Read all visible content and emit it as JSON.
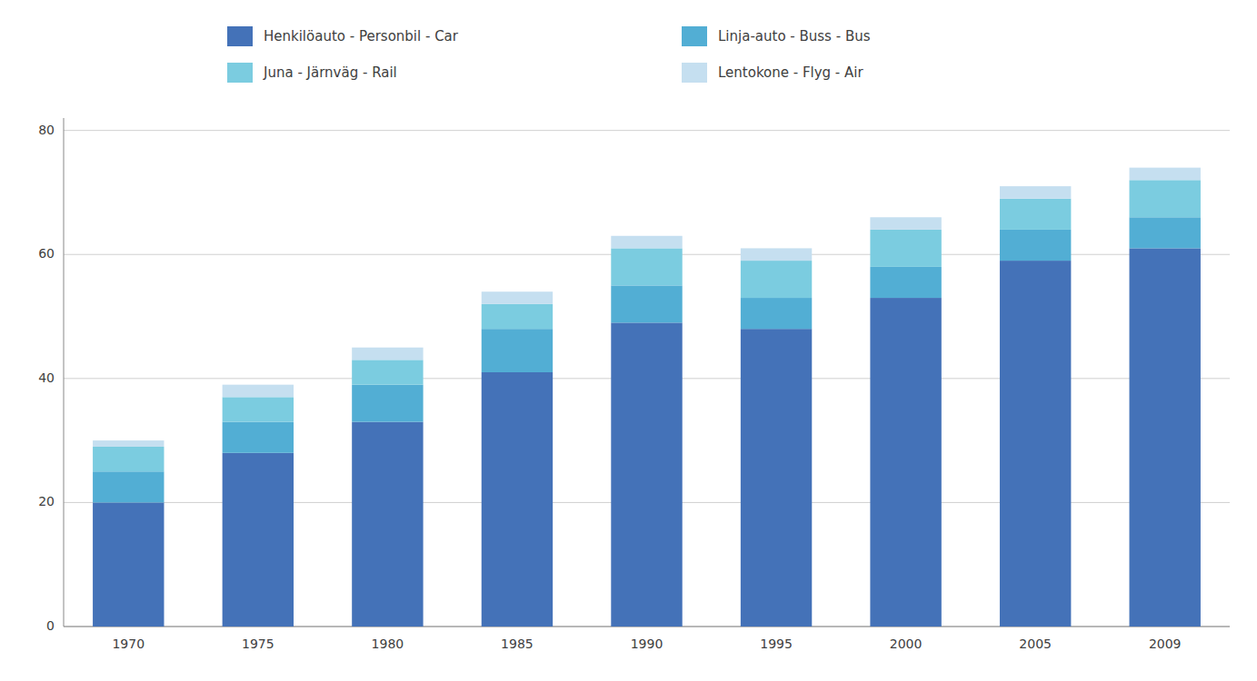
{
  "chart_data": {
    "type": "bar",
    "stacked": true,
    "categories": [
      "1970",
      "1975",
      "1980",
      "1985",
      "1990",
      "1995",
      "2000",
      "2005",
      "2009"
    ],
    "series": [
      {
        "name": "Henkilöauto - Personbil - Car",
        "color": "#4472b8",
        "values": [
          20,
          28,
          33,
          41,
          49,
          48,
          53,
          59,
          61
        ]
      },
      {
        "name": "Linja-auto - Buss - Bus",
        "color": "#52aed4",
        "values": [
          5,
          5,
          6,
          7,
          6,
          5,
          5,
          5,
          5
        ]
      },
      {
        "name": "Juna - Järnväg - Rail",
        "color": "#7bcce0",
        "values": [
          4,
          4,
          4,
          4,
          6,
          6,
          6,
          5,
          6
        ]
      },
      {
        "name": "Lentokone - Flyg - Air",
        "color": "#c5dff0",
        "values": [
          1,
          2,
          2,
          2,
          2,
          2,
          2,
          2,
          2
        ]
      }
    ],
    "ylim": [
      0,
      82
    ],
    "yticks": [
      0,
      20,
      40,
      60,
      80
    ],
    "grid": true,
    "legend": "top"
  }
}
